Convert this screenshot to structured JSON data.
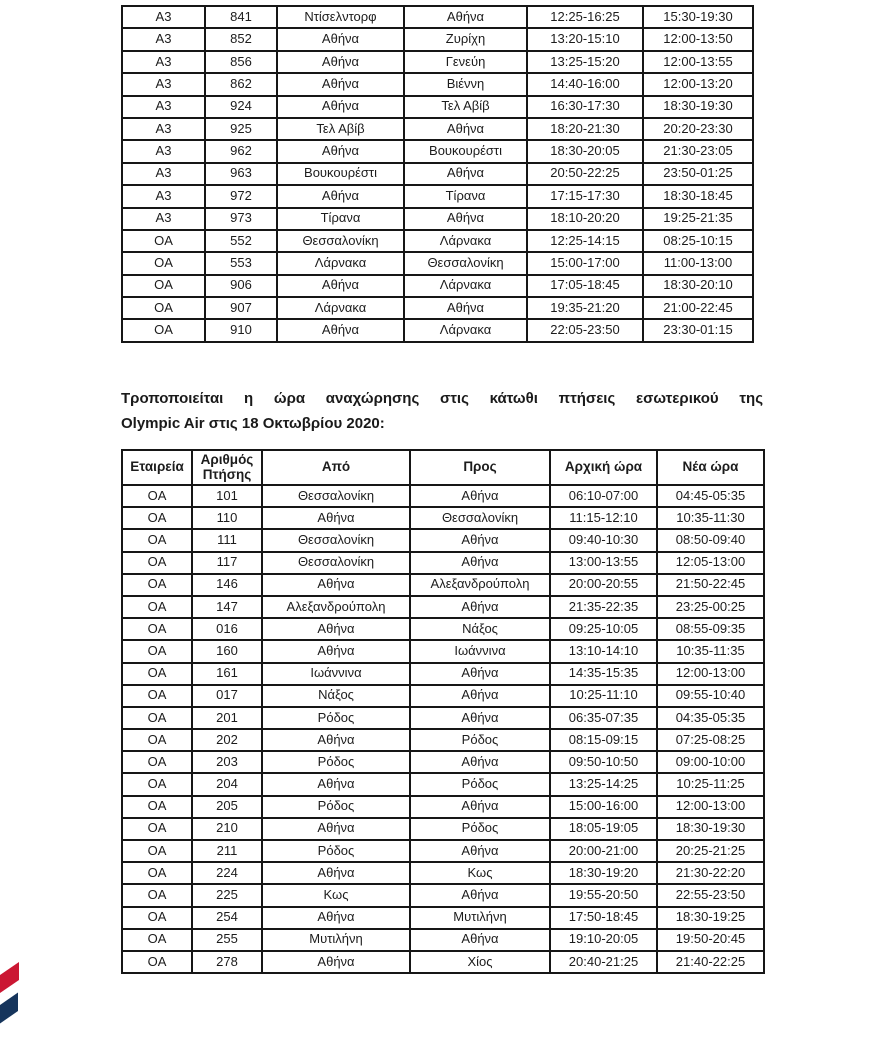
{
  "page": {
    "background": "#ffffff",
    "text_color": "#1c1c1c"
  },
  "table_international": {
    "description": "modified-international-flights-table-continued",
    "rows": [
      [
        "A3",
        "841",
        "Ντίσελντορφ",
        "Αθήνα",
        "12:25-16:25",
        "15:30-19:30"
      ],
      [
        "A3",
        "852",
        "Αθήνα",
        "Ζυρίχη",
        "13:20-15:10",
        "12:00-13:50"
      ],
      [
        "A3",
        "856",
        "Αθήνα",
        "Γενεύη",
        "13:25-15:20",
        "12:00-13:55"
      ],
      [
        "A3",
        "862",
        "Αθήνα",
        "Βιέννη",
        "14:40-16:00",
        "12:00-13:20"
      ],
      [
        "A3",
        "924",
        "Αθήνα",
        "Τελ Αβίβ",
        "16:30-17:30",
        "18:30-19:30"
      ],
      [
        "A3",
        "925",
        "Τελ Αβίβ",
        "Αθήνα",
        "18:20-21:30",
        "20:20-23:30"
      ],
      [
        "A3",
        "962",
        "Αθήνα",
        "Βουκουρέστι",
        "18:30-20:05",
        "21:30-23:05"
      ],
      [
        "A3",
        "963",
        "Βουκουρέστι",
        "Αθήνα",
        "20:50-22:25",
        "23:50-01:25"
      ],
      [
        "A3",
        "972",
        "Αθήνα",
        "Τίρανα",
        "17:15-17:30",
        "18:30-18:45"
      ],
      [
        "A3",
        "973",
        "Τίρανα",
        "Αθήνα",
        "18:10-20:20",
        "19:25-21:35"
      ],
      [
        "OA",
        "552",
        "Θεσσαλονίκη",
        "Λάρνακα",
        "12:25-14:15",
        "08:25-10:15"
      ],
      [
        "OA",
        "553",
        "Λάρνακα",
        "Θεσσαλονίκη",
        "15:00-17:00",
        "11:00-13:00"
      ],
      [
        "OA",
        "906",
        "Αθήνα",
        "Λάρνακα",
        "17:05-18:45",
        "18:30-20:10"
      ],
      [
        "OA",
        "907",
        "Λάρνακα",
        "Αθήνα",
        "19:35-21:20",
        "21:00-22:45"
      ],
      [
        "OA",
        "910",
        "Αθήνα",
        "Λάρνακα",
        "22:05-23:50",
        "23:30-01:15"
      ]
    ]
  },
  "paragraph": {
    "line1": "Τροποποιείται η ώρα αναχώρησης στις κάτωθι πτήσεις εσωτερικού της",
    "line2": "Olympic Air στις 18 Οκτωβρίου 2020:"
  },
  "table_domestic": {
    "description": "modified-domestic-flights-table",
    "headers": [
      "Εταιρεία",
      "Αριθμός Πτήσης",
      "Από",
      "Προς",
      "Αρχική ώρα",
      "Νέα ώρα"
    ],
    "rows": [
      [
        "OA",
        "101",
        "Θεσσαλονίκη",
        "Αθήνα",
        "06:10-07:00",
        "04:45-05:35"
      ],
      [
        "OA",
        "110",
        "Αθήνα",
        "Θεσσαλονίκη",
        "11:15-12:10",
        "10:35-11:30"
      ],
      [
        "OA",
        "111",
        "Θεσσαλονίκη",
        "Αθήνα",
        "09:40-10:30",
        "08:50-09:40"
      ],
      [
        "OA",
        "117",
        "Θεσσαλονίκη",
        "Αθήνα",
        "13:00-13:55",
        "12:05-13:00"
      ],
      [
        "OA",
        "146",
        "Αθήνα",
        "Αλεξανδρούπολη",
        "20:00-20:55",
        "21:50-22:45"
      ],
      [
        "OA",
        "147",
        "Αλεξανδρούπολη",
        "Αθήνα",
        "21:35-22:35",
        "23:25-00:25"
      ],
      [
        "OA",
        "016",
        "Αθήνα",
        "Νάξος",
        "09:25-10:05",
        "08:55-09:35"
      ],
      [
        "OA",
        "160",
        "Αθήνα",
        "Ιωάννινα",
        "13:10-14:10",
        "10:35-11:35"
      ],
      [
        "OA",
        "161",
        "Ιωάννινα",
        "Αθήνα",
        "14:35-15:35",
        "12:00-13:00"
      ],
      [
        "OA",
        "017",
        "Νάξος",
        "Αθήνα",
        "10:25-11:10",
        "09:55-10:40"
      ],
      [
        "OA",
        "201",
        "Ρόδος",
        "Αθήνα",
        "06:35-07:35",
        "04:35-05:35"
      ],
      [
        "OA",
        "202",
        "Αθήνα",
        "Ρόδος",
        "08:15-09:15",
        "07:25-08:25"
      ],
      [
        "OA",
        "203",
        "Ρόδος",
        "Αθήνα",
        "09:50-10:50",
        "09:00-10:00"
      ],
      [
        "OA",
        "204",
        "Αθήνα",
        "Ρόδος",
        "13:25-14:25",
        "10:25-11:25"
      ],
      [
        "OA",
        "205",
        "Ρόδος",
        "Αθήνα",
        "15:00-16:00",
        "12:00-13:00"
      ],
      [
        "OA",
        "210",
        "Αθήνα",
        "Ρόδος",
        "18:05-19:05",
        "18:30-19:30"
      ],
      [
        "OA",
        "211",
        "Ρόδος",
        "Αθήνα",
        "20:00-21:00",
        "20:25-21:25"
      ],
      [
        "OA",
        "224",
        "Αθήνα",
        "Κως",
        "18:30-19:20",
        "21:30-22:20"
      ],
      [
        "OA",
        "225",
        "Κως",
        "Αθήνα",
        "19:55-20:50",
        "22:55-23:50"
      ],
      [
        "OA",
        "254",
        "Αθήνα",
        "Μυτιλήνη",
        "17:50-18:45",
        "18:30-19:25"
      ],
      [
        "OA",
        "255",
        "Μυτιλήνη",
        "Αθήνα",
        "19:10-20:05",
        "19:50-20:45"
      ],
      [
        "OA",
        "278",
        "Αθήνα",
        "Χίος",
        "20:40-21:25",
        "21:40-22:25"
      ]
    ]
  },
  "corner_graphic": {
    "name": "diagonal-stripes",
    "stripe_red": "#CB1733",
    "stripe_navy": "#16355C"
  }
}
